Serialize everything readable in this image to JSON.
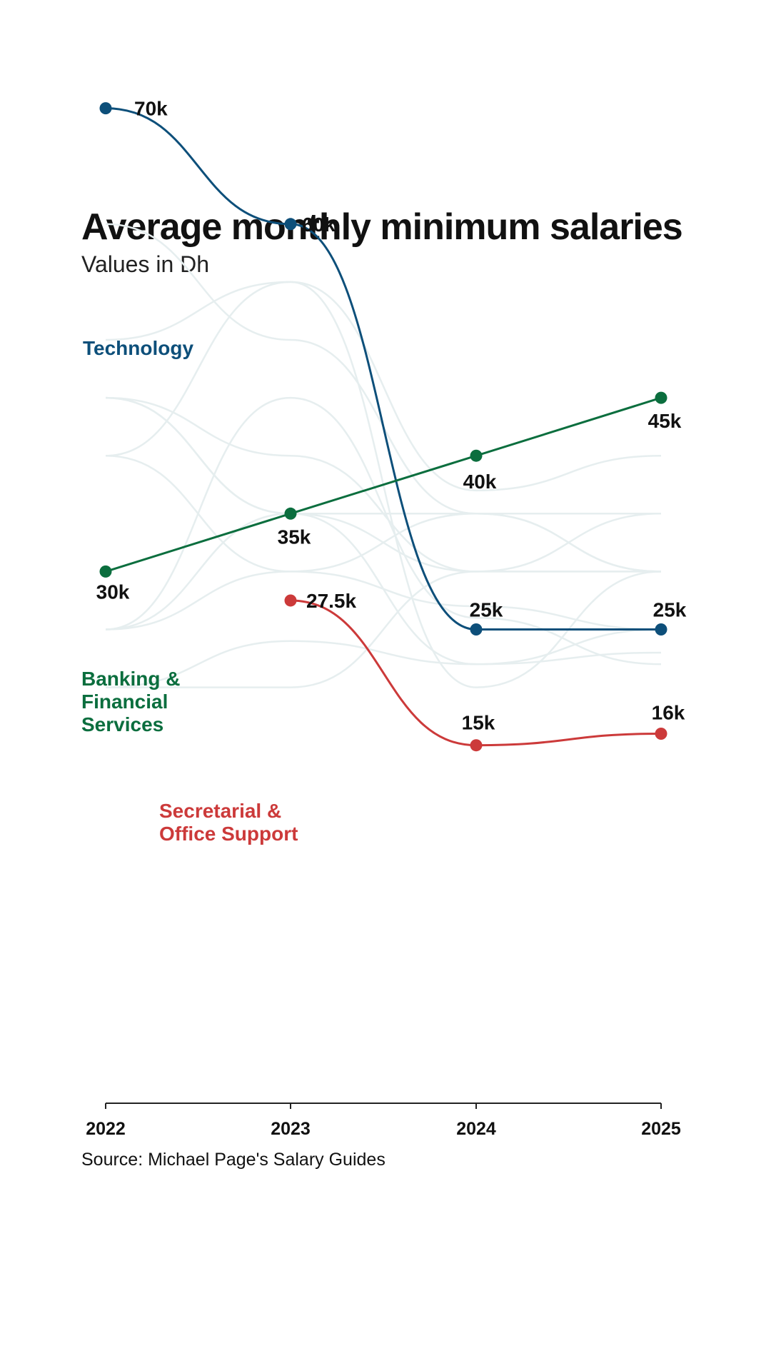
{
  "title": "Average monthly minimum salaries",
  "subtitle": "Values in Dh",
  "source": "Source: Michael Page's Salary Guides",
  "chart_data": {
    "type": "line",
    "title": "Average monthly minimum salaries",
    "subtitle": "Values in Dh",
    "categories": [
      "2022",
      "2023",
      "2024",
      "2025"
    ],
    "ylabel": "",
    "xlabel": "",
    "ylim": [
      0,
      72000
    ],
    "grid": false,
    "series": [
      {
        "name": "Technology",
        "name_lines": [
          "Technology"
        ],
        "color": "#0d4f7a",
        "values": [
          70000,
          60000,
          25000,
          25000
        ],
        "labels": [
          "70k",
          "60k",
          "25k",
          "25k"
        ]
      },
      {
        "name": "Banking & Financial Services",
        "name_lines": [
          "Banking &",
          "Financial",
          "Services"
        ],
        "color": "#0b6e3e",
        "values": [
          30000,
          35000,
          40000,
          45000
        ],
        "labels": [
          "30k",
          "35k",
          "40k",
          "45k"
        ]
      },
      {
        "name": "Secretarial & Office Support",
        "name_lines": [
          "Secretarial &",
          "Office Support"
        ],
        "color": "#cc3a3a",
        "values": [
          null,
          27500,
          15000,
          16000
        ],
        "labels": [
          "",
          "27.5k",
          "15k",
          "16k"
        ]
      }
    ],
    "background_series": [
      [
        60000,
        50000,
        35000,
        35000
      ],
      [
        50000,
        55000,
        37000,
        40000
      ],
      [
        45000,
        35000,
        22000,
        25000
      ],
      [
        40000,
        55000,
        20000,
        30000
      ],
      [
        45000,
        40000,
        30000,
        35000
      ],
      [
        40000,
        30000,
        27000,
        25000
      ],
      [
        25000,
        30000,
        35000,
        30000
      ],
      [
        20000,
        20000,
        30000,
        30000
      ],
      [
        20000,
        24000,
        22000,
        23000
      ],
      [
        25000,
        45000,
        26000,
        22000
      ],
      [
        45000,
        35000,
        30000,
        30000
      ],
      [
        25000,
        35000,
        35000,
        30000
      ]
    ],
    "background_color": "#e6eeef"
  }
}
